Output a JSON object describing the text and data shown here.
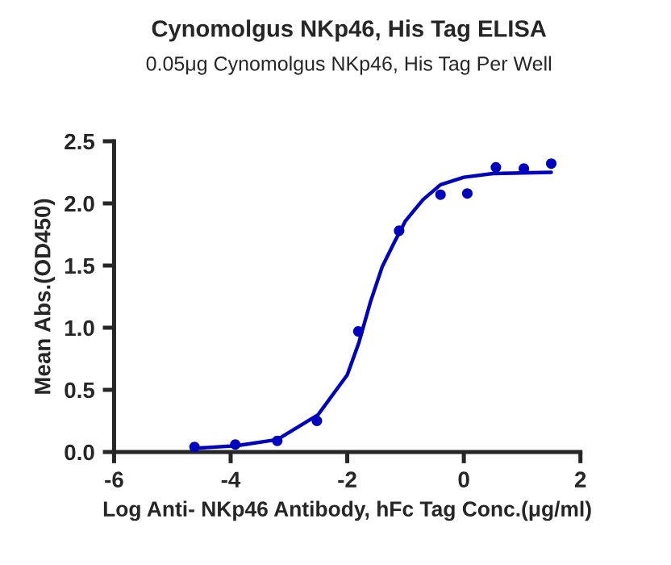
{
  "chart_data": {
    "type": "scatter",
    "title": "Cynomolgus NKp46, His Tag ELISA",
    "subtitle": "0.05μg Cynomolgus NKp46, His Tag Per Well",
    "xlabel": "Log Anti- NKp46 Antibody, hFc Tag Conc.(μg/ml)",
    "ylabel": "Mean Abs.(OD450)",
    "series": [
      {
        "color": "#0000c0",
        "marker": "circle",
        "x": [
          -4.62,
          -3.92,
          -3.2,
          -2.52,
          -1.81,
          -1.11,
          -0.4,
          0.06,
          0.55,
          1.03,
          1.5
        ],
        "values": [
          0.04,
          0.06,
          0.09,
          0.25,
          0.97,
          1.78,
          2.07,
          2.08,
          2.29,
          2.28,
          2.32
        ]
      },
      {
        "type": "line",
        "color": "#0000c0",
        "marker": "none",
        "x": [
          -4.62,
          -3.9,
          -3.2,
          -2.5,
          -2.0,
          -1.8,
          -1.6,
          -1.4,
          -1.2,
          -1.0,
          -0.7,
          -0.4,
          0.0,
          0.5,
          1.5
        ],
        "values": [
          0.03,
          0.05,
          0.1,
          0.3,
          0.62,
          0.88,
          1.21,
          1.49,
          1.68,
          1.86,
          2.03,
          2.15,
          2.21,
          2.24,
          2.25
        ]
      }
    ],
    "xlim": [
      -6,
      2
    ],
    "xticks": [
      -6,
      -4,
      -2,
      0,
      2
    ],
    "ylim": [
      0,
      2.5
    ],
    "yticks": [
      {
        "value": 0,
        "label": "0.0"
      },
      {
        "value": 0.5,
        "label": "0.5"
      },
      {
        "value": 1,
        "label": "1.0"
      },
      {
        "value": 1.5,
        "label": "1.5"
      },
      {
        "value": 2,
        "label": "2.0"
      },
      {
        "value": 2.5,
        "label": "2.5"
      }
    ],
    "grid": false,
    "legend": false
  }
}
